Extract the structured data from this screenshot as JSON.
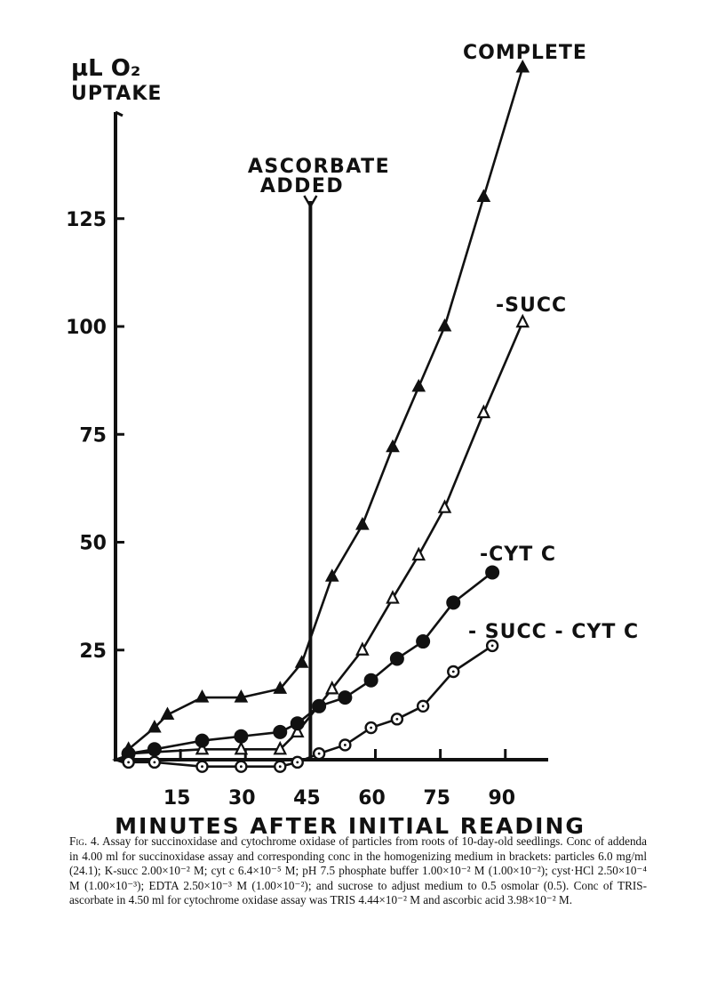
{
  "chart_data": {
    "type": "line",
    "ylabel_line1": "µL O₂",
    "ylabel_line2": "UPTAKE",
    "xlabel": "MINUTES AFTER INITIAL READING",
    "x_ticks": [
      "15",
      "30",
      "45",
      "60",
      "75",
      "90"
    ],
    "x_tick_values": [
      15,
      30,
      45,
      60,
      75,
      90
    ],
    "y_ticks": [
      "25",
      "50",
      "75",
      "100",
      "125"
    ],
    "y_tick_values": [
      25,
      50,
      75,
      100,
      125
    ],
    "xlim": [
      0,
      100
    ],
    "ylim": [
      -5,
      160
    ],
    "grid": false,
    "annotation": {
      "line1": "ASCORBATE",
      "line2": "ADDED",
      "x": 45
    },
    "series": [
      {
        "name": "COMPLETE",
        "marker": "filled-triangle",
        "x": [
          3,
          9,
          12,
          20,
          29,
          38,
          43,
          50,
          57,
          64,
          70,
          76,
          85,
          94
        ],
        "y": [
          2,
          7,
          10,
          14,
          14,
          16,
          22,
          42,
          54,
          72,
          86,
          100,
          130,
          160
        ]
      },
      {
        "name": "-SUCC",
        "marker": "open-triangle",
        "x": [
          3,
          20,
          29,
          38,
          42,
          50,
          57,
          64,
          70,
          76,
          85,
          94
        ],
        "y": [
          1,
          2,
          2,
          2,
          6,
          16,
          25,
          37,
          47,
          58,
          80,
          101
        ]
      },
      {
        "name": "-CYT C",
        "marker": "filled-circle",
        "x": [
          3,
          9,
          20,
          29,
          38,
          42,
          47,
          53,
          59,
          65,
          71,
          78,
          87
        ],
        "y": [
          1,
          2,
          4,
          5,
          6,
          8,
          12,
          14,
          18,
          23,
          27,
          36,
          43
        ]
      },
      {
        "name": "- SUCC - CYT C",
        "marker": "open-circle",
        "x": [
          3,
          9,
          20,
          29,
          38,
          42,
          47,
          53,
          59,
          65,
          71,
          78,
          87
        ],
        "y": [
          -1,
          -1,
          -2,
          -2,
          -2,
          -1,
          1,
          3,
          7,
          9,
          12,
          20,
          26
        ]
      }
    ]
  },
  "caption": {
    "fig_label": "Fig. 4.",
    "text": "Assay for succinoxidase and cytochrome oxidase of particles from roots of 10-day-old seedlings. Conc of addenda in 4.00 ml for succinoxidase assay and corresponding conc in the homogenizing medium in brackets: particles 6.0 mg/ml (24.1); K-succ 2.00×10⁻² M; cyt c 6.4×10⁻⁵ M; pH 7.5 phosphate buffer 1.00×10⁻² M (1.00×10⁻²); cyst·HCl 2.50×10⁻⁴ M (1.00×10⁻³); EDTA 2.50×10⁻³ M (1.00×10⁻²); and sucrose to adjust medium to 0.5 osmolar (0.5). Conc of TRIS-ascorbate in 4.50 ml for cytochrome oxidase assay was TRIS 4.44×10⁻² M and ascorbic acid 3.98×10⁻² M."
  }
}
